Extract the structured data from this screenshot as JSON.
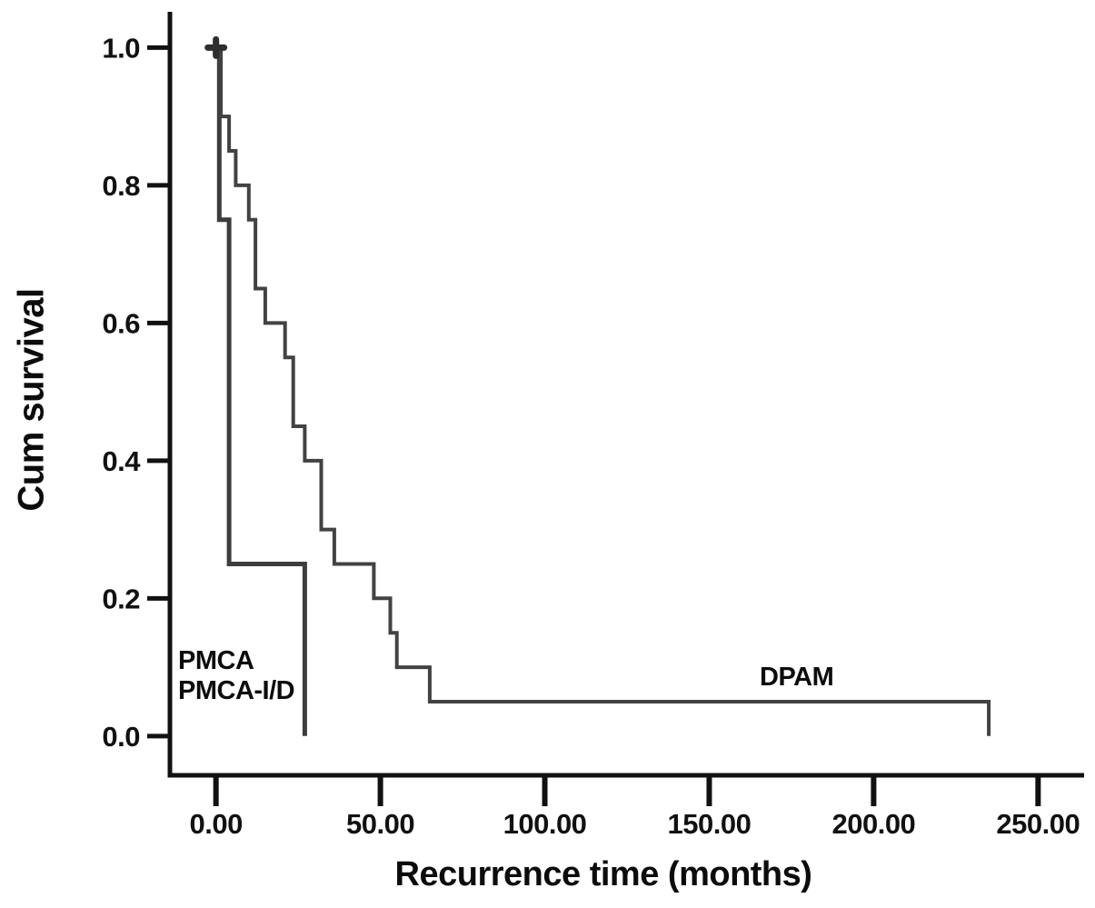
{
  "figure": {
    "background": "#ffffff"
  },
  "annotations": {
    "pmca_line1": "PMCA",
    "pmca_line2": "PMCA-I/D",
    "dpam": "DPAM"
  },
  "chart_data": {
    "type": "line",
    "subtype": "kaplan_meier_step_curves",
    "title": "",
    "xlabel": "Recurrence time (months)",
    "ylabel": "Cum survival",
    "grid": false,
    "legend_position": "in-plot text labels",
    "axis_color": "#111111",
    "curve_color": "#3d3d3d",
    "censor_color": "#2e2e2e",
    "xlim": [
      -14,
      264
    ],
    "ylim": [
      -0.057,
      1.052
    ],
    "x_ticks": [
      0,
      50,
      100,
      150,
      200,
      250
    ],
    "x_tick_labels": [
      "0.00",
      "50.00",
      "100.00",
      "150.00",
      "200.00",
      "250.00"
    ],
    "y_ticks": [
      0.0,
      0.2,
      0.4,
      0.6,
      0.8,
      1.0
    ],
    "y_tick_labels": [
      "0.0",
      "0.2",
      "0.4",
      "0.6",
      "0.8",
      "1.0"
    ],
    "series": [
      {
        "id": "pmca",
        "name": "PMCA / PMCA-I/D",
        "color": "#3d3d3d",
        "stroke_width": 5,
        "start_t": 0,
        "start_s": 1.0,
        "drops": [
          {
            "t": 1,
            "to": 0.75
          },
          {
            "t": 4,
            "to": 0.25
          },
          {
            "t": 27,
            "to": 0.0
          }
        ]
      },
      {
        "id": "dpam",
        "name": "DPAM",
        "color": "#424242",
        "stroke_width": 4,
        "start_t": 0,
        "start_s": 1.0,
        "drops": [
          {
            "t": 1.5,
            "to": 0.9
          },
          {
            "t": 4,
            "to": 0.85
          },
          {
            "t": 6,
            "to": 0.8
          },
          {
            "t": 10,
            "to": 0.75
          },
          {
            "t": 12,
            "to": 0.65
          },
          {
            "t": 15,
            "to": 0.6
          },
          {
            "t": 21,
            "to": 0.55
          },
          {
            "t": 23.5,
            "to": 0.45
          },
          {
            "t": 27,
            "to": 0.4
          },
          {
            "t": 32,
            "to": 0.3
          },
          {
            "t": 36,
            "to": 0.25
          },
          {
            "t": 48,
            "to": 0.2
          },
          {
            "t": 53,
            "to": 0.15
          },
          {
            "t": 55,
            "to": 0.1
          },
          {
            "t": 65,
            "to": 0.05
          },
          {
            "t": 235,
            "to": 0.0
          }
        ]
      }
    ],
    "censored": [
      {
        "t": 0,
        "s": 1.0
      }
    ]
  }
}
